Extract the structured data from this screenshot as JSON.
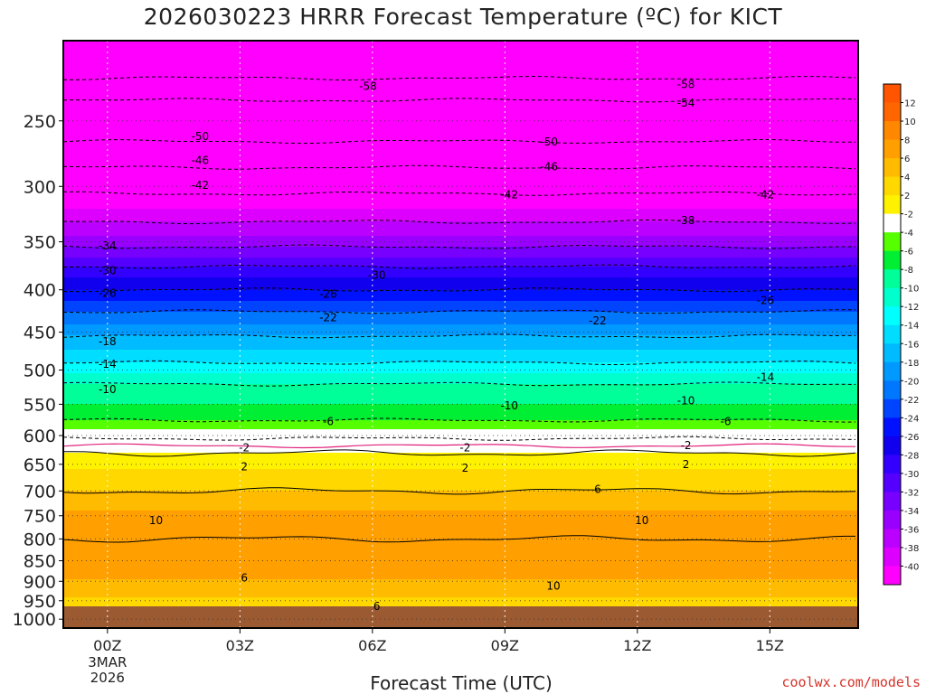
{
  "title": "2026030223 HRRR Forecast Temperature (ºC) for KICT",
  "credit": "coolwx.com/models",
  "chart_data": {
    "type": "heatmap",
    "title": "2026030223 HRRR Forecast Temperature (ºC) for KICT",
    "xlabel": "Forecast Time (UTC)",
    "ylabel": "",
    "x_ticks": [
      {
        "hour": 0,
        "label": "00Z"
      },
      {
        "hour": 3,
        "label": "03Z"
      },
      {
        "hour": 6,
        "label": "06Z"
      },
      {
        "hour": 9,
        "label": "09Z"
      },
      {
        "hour": 12,
        "label": "12Z"
      },
      {
        "hour": 15,
        "label": "15Z"
      }
    ],
    "x_date_label": [
      "3MAR",
      "2026"
    ],
    "xlim_hours": [
      -1,
      17
    ],
    "y_ticks": [
      250,
      300,
      350,
      400,
      450,
      500,
      550,
      600,
      650,
      700,
      750,
      800,
      850,
      900,
      950,
      1000
    ],
    "ylim_hPa": [
      200,
      1025
    ],
    "y_scale": "log-pressure",
    "ground_level_hPa": 965,
    "colorbar": {
      "labels": [
        "12",
        "10",
        "8",
        "6",
        "4",
        "2",
        "-2",
        "-4",
        "-6",
        "-8",
        "-10",
        "-12",
        "-14",
        "-16",
        "-18",
        "-20",
        "-22",
        "-24",
        "-26",
        "-28",
        "-30",
        "-32",
        "-34",
        "-36",
        "-38",
        "-40"
      ],
      "colors": [
        "#ff6600",
        "#ff8800",
        "#ff9f00",
        "#ffbb00",
        "#ffd800",
        "#fff200",
        "#ffffff",
        "#55ff00",
        "#00ee33",
        "#00ff99",
        "#00ffcc",
        "#00ffff",
        "#00ddff",
        "#00bbff",
        "#0099ff",
        "#0077ff",
        "#0044ff",
        "#0011ff",
        "#1100ee",
        "#3300ff",
        "#5500ff",
        "#7700ff",
        "#9900ff",
        "#bb00ff",
        "#dd00ff",
        "#ff00ff"
      ]
    },
    "temperature_profile": [
      {
        "p": 210,
        "t": -60
      },
      {
        "p": 240,
        "t": -55
      },
      {
        "p": 270,
        "t": -49
      },
      {
        "p": 300,
        "t": -43
      },
      {
        "p": 325,
        "t": -39
      },
      {
        "p": 350,
        "t": -35
      },
      {
        "p": 375,
        "t": -30
      },
      {
        "p": 400,
        "t": -26
      },
      {
        "p": 425,
        "t": -22
      },
      {
        "p": 455,
        "t": -18
      },
      {
        "p": 490,
        "t": -14
      },
      {
        "p": 520,
        "t": -10
      },
      {
        "p": 550,
        "t": -8
      },
      {
        "p": 575,
        "t": -6
      },
      {
        "p": 590,
        "t": -4
      },
      {
        "p": 605,
        "t": -2
      },
      {
        "p": 630,
        "t": 2
      },
      {
        "p": 660,
        "t": 4
      },
      {
        "p": 700,
        "t": 6
      },
      {
        "p": 740,
        "t": 8
      },
      {
        "p": 800,
        "t": 10
      },
      {
        "p": 870,
        "t": 9
      },
      {
        "p": 920,
        "t": 7
      },
      {
        "p": 960,
        "t": 5
      }
    ],
    "contour_labels": [
      {
        "hour": 5.9,
        "p": 227,
        "label": "-58"
      },
      {
        "hour": 13.1,
        "p": 226,
        "label": "-58"
      },
      {
        "hour": 13.1,
        "p": 238,
        "label": "-54"
      },
      {
        "hour": 2.1,
        "p": 261,
        "label": "-50"
      },
      {
        "hour": 10.0,
        "p": 265,
        "label": "-50"
      },
      {
        "hour": 2.1,
        "p": 279,
        "label": "-46"
      },
      {
        "hour": 10.0,
        "p": 284,
        "label": "-46"
      },
      {
        "hour": 2.1,
        "p": 299,
        "label": "-42"
      },
      {
        "hour": 9.1,
        "p": 307,
        "label": "-42"
      },
      {
        "hour": 14.9,
        "p": 307,
        "label": "-42"
      },
      {
        "hour": 13.1,
        "p": 330,
        "label": "-38"
      },
      {
        "hour": 0.0,
        "p": 354,
        "label": "-34"
      },
      {
        "hour": 0.0,
        "p": 379,
        "label": "-30"
      },
      {
        "hour": 6.1,
        "p": 384,
        "label": "-30"
      },
      {
        "hour": 0.0,
        "p": 404,
        "label": "-26"
      },
      {
        "hour": 5.0,
        "p": 405,
        "label": "-26"
      },
      {
        "hour": 14.9,
        "p": 412,
        "label": "-26"
      },
      {
        "hour": 5.0,
        "p": 432,
        "label": "-22"
      },
      {
        "hour": 11.1,
        "p": 436,
        "label": "-22"
      },
      {
        "hour": 0.0,
        "p": 462,
        "label": "-18"
      },
      {
        "hour": 0.0,
        "p": 492,
        "label": "-14"
      },
      {
        "hour": 14.9,
        "p": 510,
        "label": "-14"
      },
      {
        "hour": 0.0,
        "p": 528,
        "label": "-10"
      },
      {
        "hour": 9.1,
        "p": 552,
        "label": "-10"
      },
      {
        "hour": 13.1,
        "p": 545,
        "label": "-10"
      },
      {
        "hour": 5.0,
        "p": 577,
        "label": "-6"
      },
      {
        "hour": 14.0,
        "p": 577,
        "label": "-6"
      },
      {
        "hour": 3.1,
        "p": 621,
        "label": "-2"
      },
      {
        "hour": 8.1,
        "p": 621,
        "label": "-2"
      },
      {
        "hour": 13.1,
        "p": 617,
        "label": "-2"
      },
      {
        "hour": 3.1,
        "p": 654,
        "label": "2"
      },
      {
        "hour": 8.1,
        "p": 657,
        "label": "2"
      },
      {
        "hour": 13.1,
        "p": 650,
        "label": "2"
      },
      {
        "hour": 11.1,
        "p": 697,
        "label": "6"
      },
      {
        "hour": 1.1,
        "p": 760,
        "label": "10"
      },
      {
        "hour": 12.1,
        "p": 760,
        "label": "10"
      },
      {
        "hour": 10.1,
        "p": 912,
        "label": "10"
      },
      {
        "hour": 3.1,
        "p": 892,
        "label": "6"
      },
      {
        "hour": 6.1,
        "p": 965,
        "label": "6"
      }
    ]
  }
}
